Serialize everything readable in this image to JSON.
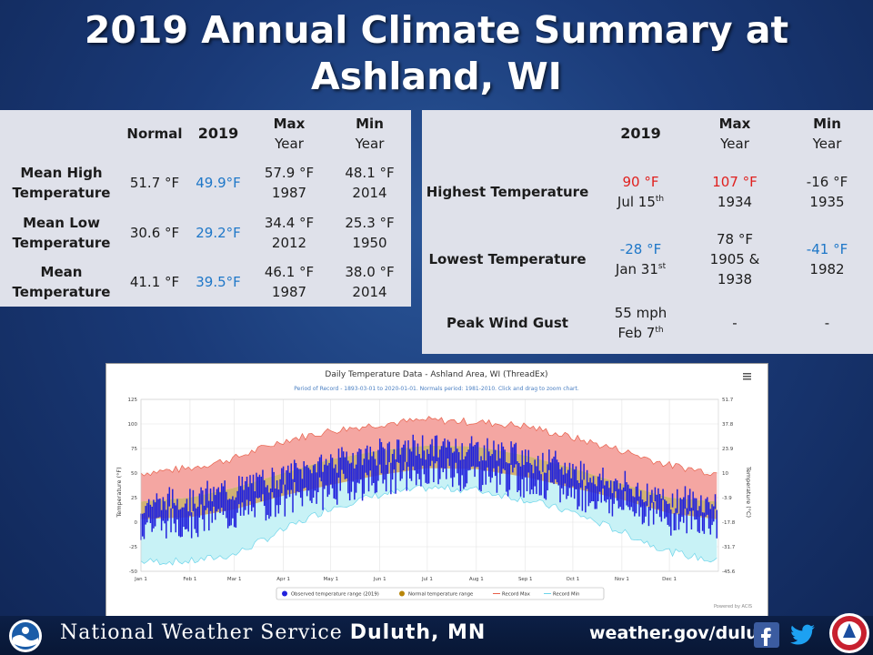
{
  "title": {
    "line1": "2019 Annual Climate Summary at",
    "line2": "Ashland, WI"
  },
  "left_table": {
    "headers": {
      "normal": "Normal",
      "y2019": "2019",
      "max1": "Max",
      "max2": "Year",
      "min1": "Min",
      "min2": "Year"
    },
    "rows": [
      {
        "label1": "Mean High",
        "label2": "Temperature",
        "normal": "51.7 °F",
        "y2019": "49.9°F",
        "max": "57.9 °F",
        "max_year": "1987",
        "min": "48.1 °F",
        "min_year": "2014"
      },
      {
        "label1": "Mean Low",
        "label2": "Temperature",
        "normal": "30.6 °F",
        "y2019": "29.2°F",
        "max": "34.4 °F",
        "max_year": "2012",
        "min": "25.3 °F",
        "min_year": "1950"
      },
      {
        "label1": "Mean",
        "label2": "Temperature",
        "normal": "41.1 °F",
        "y2019": "39.5°F",
        "max": "46.1 °F",
        "max_year": "1987",
        "min": "38.0 °F",
        "min_year": "2014"
      }
    ]
  },
  "right_table": {
    "headers": {
      "y2019": "2019",
      "max1": "Max",
      "max2": "Year",
      "min1": "Min",
      "min2": "Year"
    },
    "rows": [
      {
        "label": "Highest Temperature",
        "v2019": "90 °F",
        "d2019": "Jul 15",
        "d2019_sup": "th",
        "max": "107 °F",
        "max_year": "1934",
        "min": "-16 °F",
        "min_year": "1935"
      },
      {
        "label": "Lowest Temperature",
        "v2019": "-28 °F",
        "d2019": "Jan 31",
        "d2019_sup": "st",
        "max_l1": "78 °F",
        "max_l2": "1905 &",
        "max_l3": "1938",
        "min": "-41 °F",
        "min_year": "1982"
      },
      {
        "label": "Peak Wind Gust",
        "v2019": "55 mph",
        "d2019": "Feb 7",
        "d2019_sup": "th",
        "max": "-",
        "min": "-"
      }
    ]
  },
  "chart_data": {
    "type": "area",
    "title": "Daily Temperature Data - Ashland Area, WI (ThreadEx)",
    "subtitle": "Period of Record - 1893-03-01 to 2020-01-01. Normals period: 1981-2010. Click and drag to zoom chart.",
    "ylabel": "Temperature (°F)",
    "ylabel_right": "Temperature (°C)",
    "ylim": [
      -50,
      125
    ],
    "yticks": [
      "125",
      "100",
      "75",
      "50",
      "25",
      "0",
      "-25",
      "-50"
    ],
    "yticks_right": [
      "51.7",
      "37.8",
      "23.9",
      "10",
      "-3.9",
      "-17.8",
      "-31.7",
      "-45.6"
    ],
    "xticks": [
      "Jan 1",
      "Feb 1",
      "Mar 1",
      "Apr 1",
      "May 1",
      "Jun 1",
      "Jul 1",
      "Aug 1",
      "Sep 1",
      "Oct 1",
      "Nov 1",
      "Dec 1"
    ],
    "xtick_days": [
      0,
      31,
      59,
      90,
      120,
      151,
      181,
      212,
      243,
      273,
      304,
      334
    ],
    "legend": [
      "Observed temperature range (2019)",
      "Normal temperature range",
      "Record Max",
      "Record Min"
    ],
    "menu_icon": "hamburger-menu-icon",
    "credit": "Powered by ACIS",
    "colors": {
      "record_max": "#f4a6a2",
      "record_min": "#c8f2f6",
      "normal": "#c9a45a",
      "observed": "#2222dd",
      "record_max_line": "#e8604a",
      "record_min_line": "#6cd4ea",
      "legend_normal": "#b8860b"
    },
    "series_anchor_days": [
      0,
      31,
      59,
      90,
      120,
      151,
      181,
      212,
      243,
      273,
      304,
      334,
      364
    ],
    "record_max": [
      50,
      55,
      65,
      83,
      93,
      100,
      104,
      102,
      98,
      86,
      73,
      58,
      50
    ],
    "record_min": [
      -40,
      -40,
      -33,
      -8,
      15,
      28,
      35,
      33,
      23,
      10,
      -10,
      -30,
      -40
    ],
    "normal_high": [
      21,
      25,
      35,
      50,
      64,
      73,
      78,
      77,
      68,
      55,
      39,
      25,
      21
    ],
    "normal_low": [
      3,
      5,
      13,
      27,
      38,
      48,
      55,
      54,
      46,
      35,
      23,
      9,
      3
    ]
  },
  "footer": {
    "org": "National Weather Service",
    "office": "Duluth, MN",
    "url": "weather.gov/duluth",
    "noaa_logo": "noaa-logo",
    "facebook_icon": "facebook-icon",
    "twitter_icon": "twitter-icon",
    "nws_logo": "nws-logo"
  }
}
